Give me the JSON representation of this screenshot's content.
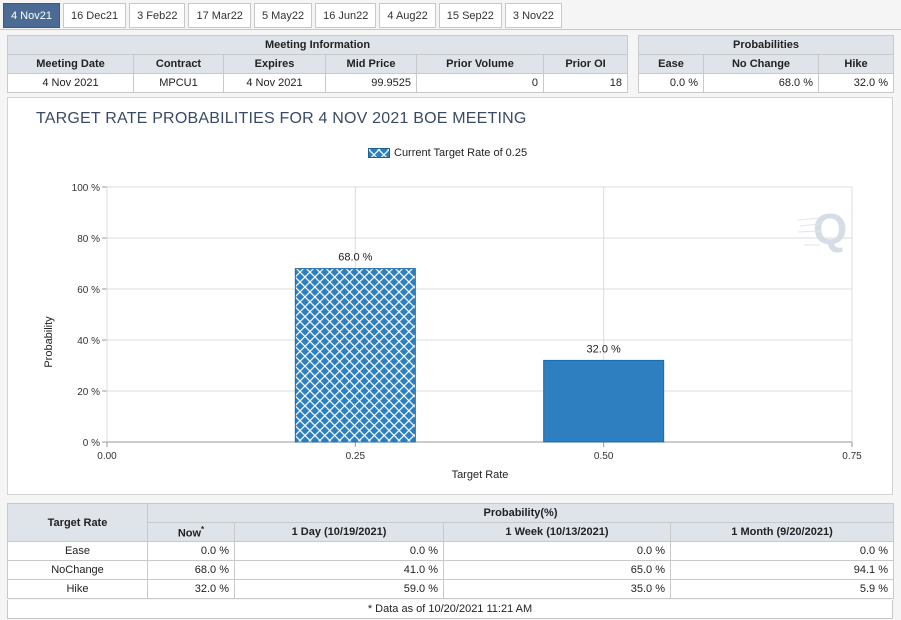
{
  "tabs": [
    "4 Nov21",
    "16 Dec21",
    "3 Feb22",
    "17 Mar22",
    "5 May22",
    "16 Jun22",
    "4 Aug22",
    "15 Sep22",
    "3 Nov22"
  ],
  "meeting_info": {
    "header": "Meeting Information",
    "columns": [
      "Meeting Date",
      "Contract",
      "Expires",
      "Mid Price",
      "Prior Volume",
      "Prior OI"
    ],
    "row": [
      "4 Nov 2021",
      "MPCU1",
      "4 Nov 2021",
      "99.9525",
      "0",
      "18"
    ]
  },
  "probabilities": {
    "header": "Probabilities",
    "columns": [
      "Ease",
      "No Change",
      "Hike"
    ],
    "row": [
      "0.0 %",
      "68.0 %",
      "32.0 %"
    ]
  },
  "chart": {
    "title": "TARGET RATE PROBABILITIES FOR 4 NOV 2021 BOE MEETING",
    "legend": "Current Target Rate of 0.25",
    "xlabel": "Target Rate",
    "ylabel": "Probability",
    "ytick_labels": [
      "0 %",
      "20 %",
      "40 %",
      "60 %",
      "80 %",
      "100 %"
    ],
    "xtick_labels": [
      "0.00",
      "0.25",
      "0.50",
      "0.75"
    ]
  },
  "chart_data": {
    "type": "bar",
    "title": "TARGET RATE PROBABILITIES FOR 4 NOV 2021 BOE MEETING",
    "xlabel": "Target Rate",
    "ylabel": "Probability",
    "x": [
      0.25,
      0.5
    ],
    "values": [
      68.0,
      32.0
    ],
    "labels": [
      "68.0 %",
      "32.0 %"
    ],
    "xlim": [
      0,
      0.75
    ],
    "ylim": [
      0,
      100
    ],
    "colors": [
      "#2d7fbf",
      "#2d7fbf"
    ],
    "current_rate_pattern": "crosshatch",
    "legend": "Current Target Rate of 0.25",
    "grid": true
  },
  "history": {
    "row_header": "Target Rate",
    "group_header": "Probability(%)",
    "columns": [
      "Now",
      "1 Day (10/19/2021)",
      "1 Week (10/13/2021)",
      "1 Month (9/20/2021)"
    ],
    "now_marker": "*",
    "rows": [
      {
        "label": "Ease",
        "values": [
          "0.0 %",
          "0.0 %",
          "0.0 %",
          "0.0 %"
        ]
      },
      {
        "label": "NoChange",
        "values": [
          "68.0 %",
          "41.0 %",
          "65.0 %",
          "94.1 %"
        ]
      },
      {
        "label": "Hike",
        "values": [
          "32.0 %",
          "59.0 %",
          "35.0 %",
          "5.9 %"
        ]
      }
    ],
    "footnote": "* Data as of 10/20/2021 11:21 AM"
  }
}
